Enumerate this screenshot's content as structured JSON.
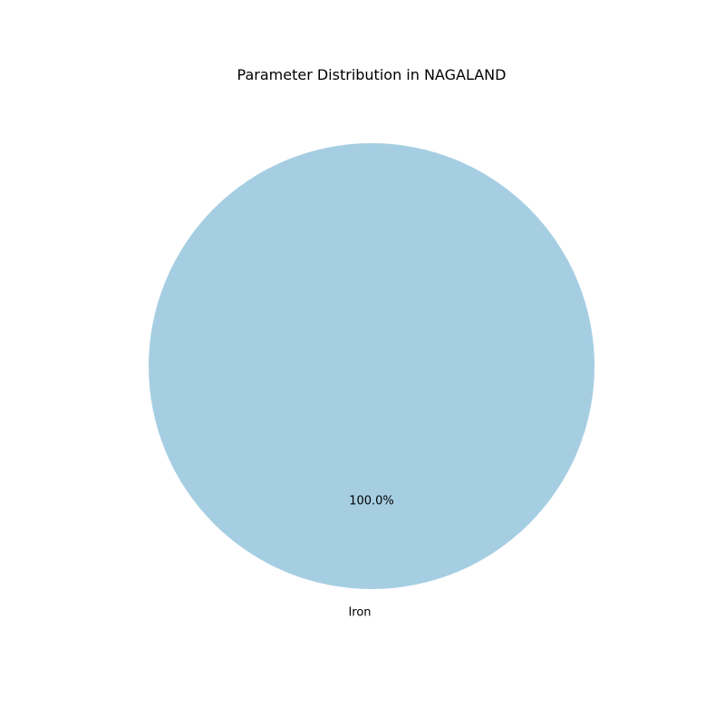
{
  "chart_data": {
    "type": "pie",
    "title": "Parameter Distribution in NAGALAND",
    "categories": [
      "Iron"
    ],
    "values": [
      100.0
    ],
    "percent_labels": [
      "100.0%"
    ],
    "colors": [
      "#a6cee3"
    ],
    "legend": "none"
  }
}
